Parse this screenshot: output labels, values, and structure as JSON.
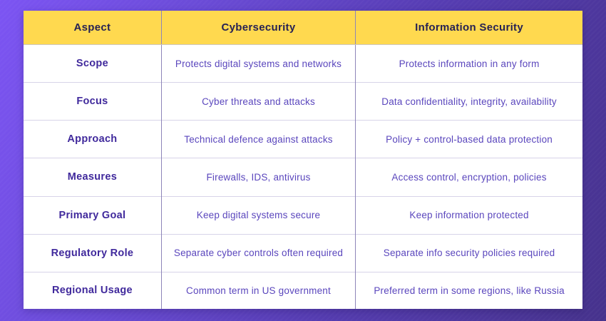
{
  "theme": {
    "background_gradient_start": "#7c54f3",
    "background_gradient_end": "#46328c",
    "header_bg": "#ffd94f",
    "header_text": "#272254",
    "aspect_text": "#40299c",
    "body_text": "#5a46bd",
    "row_divider": "#d7d3e8",
    "column_divider": "#8d85b8",
    "cell_bg": "#ffffff"
  },
  "table": {
    "columns": [
      {
        "label": "Aspect"
      },
      {
        "label": "Cybersecurity"
      },
      {
        "label": "Information Security"
      }
    ],
    "rows": [
      {
        "aspect": "Scope",
        "cybersecurity": "Protects digital systems and networks",
        "information_security": "Protects information in any form"
      },
      {
        "aspect": "Focus",
        "cybersecurity": "Cyber threats and attacks",
        "information_security": "Data confidentiality, integrity, availability"
      },
      {
        "aspect": "Approach",
        "cybersecurity": "Technical defence against attacks",
        "information_security": "Policy + control-based data protection"
      },
      {
        "aspect": "Measures",
        "cybersecurity": "Firewalls, IDS, antivirus",
        "information_security": "Access control, encryption, policies"
      },
      {
        "aspect": "Primary Goal",
        "cybersecurity": "Keep digital systems secure",
        "information_security": "Keep information protected"
      },
      {
        "aspect": "Regulatory Role",
        "cybersecurity": "Separate cyber controls often required",
        "information_security": "Separate info security policies required"
      },
      {
        "aspect": "Regional Usage",
        "cybersecurity": "Common term in US government",
        "information_security": "Preferred term in some regions, like Russia"
      }
    ]
  }
}
